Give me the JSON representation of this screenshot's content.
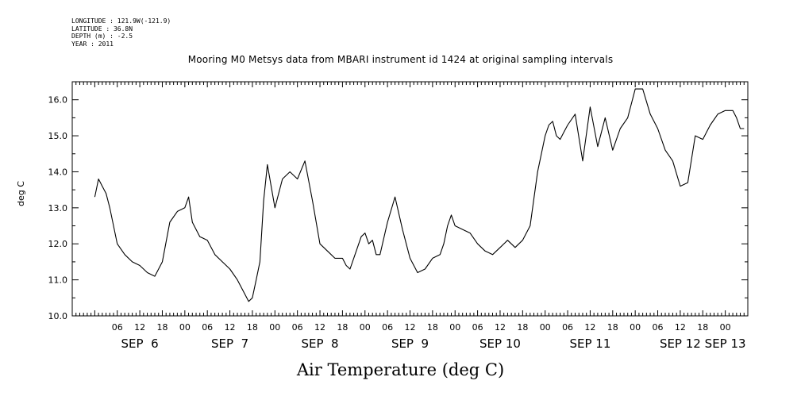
{
  "header": {
    "meta_lines": [
      "LONGITUDE : 121.9W(-121.9)",
      "LATITUDE : 36.8N",
      "DEPTH (m) : -2.5",
      "YEAR : 2011"
    ]
  },
  "chart_data": {
    "type": "line",
    "title": "Mooring M0 Metsys data from MBARI instrument id 1424 at original sampling intervals",
    "xlabel": "Air Temperature (deg C)",
    "ylabel": "deg C",
    "ylim": [
      10.0,
      16.5
    ],
    "xlim_hours_from_sep6_00": [
      -6,
      174
    ],
    "yticks": [
      "10.0",
      "11.0",
      "12.0",
      "13.0",
      "14.0",
      "15.0",
      "16.0"
    ],
    "xtick_hour_labels": [
      "06",
      "12",
      "18",
      "00",
      "06",
      "12",
      "18",
      "00",
      "06",
      "12",
      "18",
      "00",
      "06",
      "12",
      "18",
      "00",
      "06",
      "12",
      "18",
      "00",
      "06",
      "12",
      "18",
      "00",
      "06",
      "12",
      "18",
      "00"
    ],
    "date_labels": [
      "SEP  6",
      "SEP  7",
      "SEP  8",
      "SEP  9",
      "SEP 10",
      "SEP 11",
      "SEP 12",
      "SEP 13"
    ],
    "grid": false,
    "series": [
      {
        "x": [
          0,
          1,
          2,
          3,
          4,
          6,
          8,
          10,
          12,
          14,
          16,
          18,
          20,
          22,
          24,
          25,
          26,
          28,
          30,
          32,
          34,
          36,
          38,
          40,
          41,
          42,
          43,
          44,
          45,
          46,
          48,
          50,
          52,
          54,
          56,
          58,
          60,
          62,
          64,
          66,
          67,
          68,
          69,
          70,
          71,
          72,
          73,
          74,
          75,
          76,
          78,
          80,
          82,
          84,
          86,
          88,
          90,
          92,
          93,
          94,
          95,
          96,
          98,
          100,
          102,
          104,
          106,
          108,
          110,
          112,
          114,
          116,
          118,
          120,
          121,
          122,
          123,
          124,
          125,
          126,
          128,
          130,
          132,
          134,
          136,
          138,
          140,
          142,
          144,
          146,
          148,
          150,
          152,
          154,
          156,
          158,
          160,
          162,
          164,
          166,
          168,
          170,
          171,
          172,
          173
        ],
        "y": [
          13.3,
          13.8,
          13.6,
          13.4,
          13.0,
          12.0,
          11.7,
          11.5,
          11.4,
          11.2,
          11.1,
          11.5,
          12.6,
          12.9,
          13.0,
          13.3,
          12.6,
          12.2,
          12.1,
          11.7,
          11.5,
          11.3,
          11.0,
          10.6,
          10.4,
          10.5,
          11.0,
          11.5,
          13.2,
          14.2,
          13.0,
          13.8,
          14.0,
          13.8,
          14.3,
          13.2,
          12.0,
          11.8,
          11.6,
          11.6,
          11.4,
          11.3,
          11.6,
          11.9,
          12.2,
          12.3,
          12.0,
          12.1,
          11.7,
          11.7,
          12.6,
          13.3,
          12.4,
          11.6,
          11.2,
          11.3,
          11.6,
          11.7,
          12.0,
          12.5,
          12.8,
          12.5,
          12.4,
          12.3,
          12.0,
          11.8,
          11.7,
          11.9,
          12.1,
          11.9,
          12.1,
          12.5,
          14.0,
          15.0,
          15.3,
          15.4,
          15.0,
          14.9,
          15.1,
          15.3,
          15.6,
          14.3,
          15.8,
          14.7,
          15.5,
          14.6,
          15.2,
          15.5,
          16.3,
          16.3,
          15.6,
          15.2,
          14.6,
          14.3,
          13.6,
          13.7,
          15.0,
          14.9,
          15.3,
          15.6,
          15.7,
          15.7,
          15.5,
          15.2,
          15.2
        ]
      }
    ]
  }
}
